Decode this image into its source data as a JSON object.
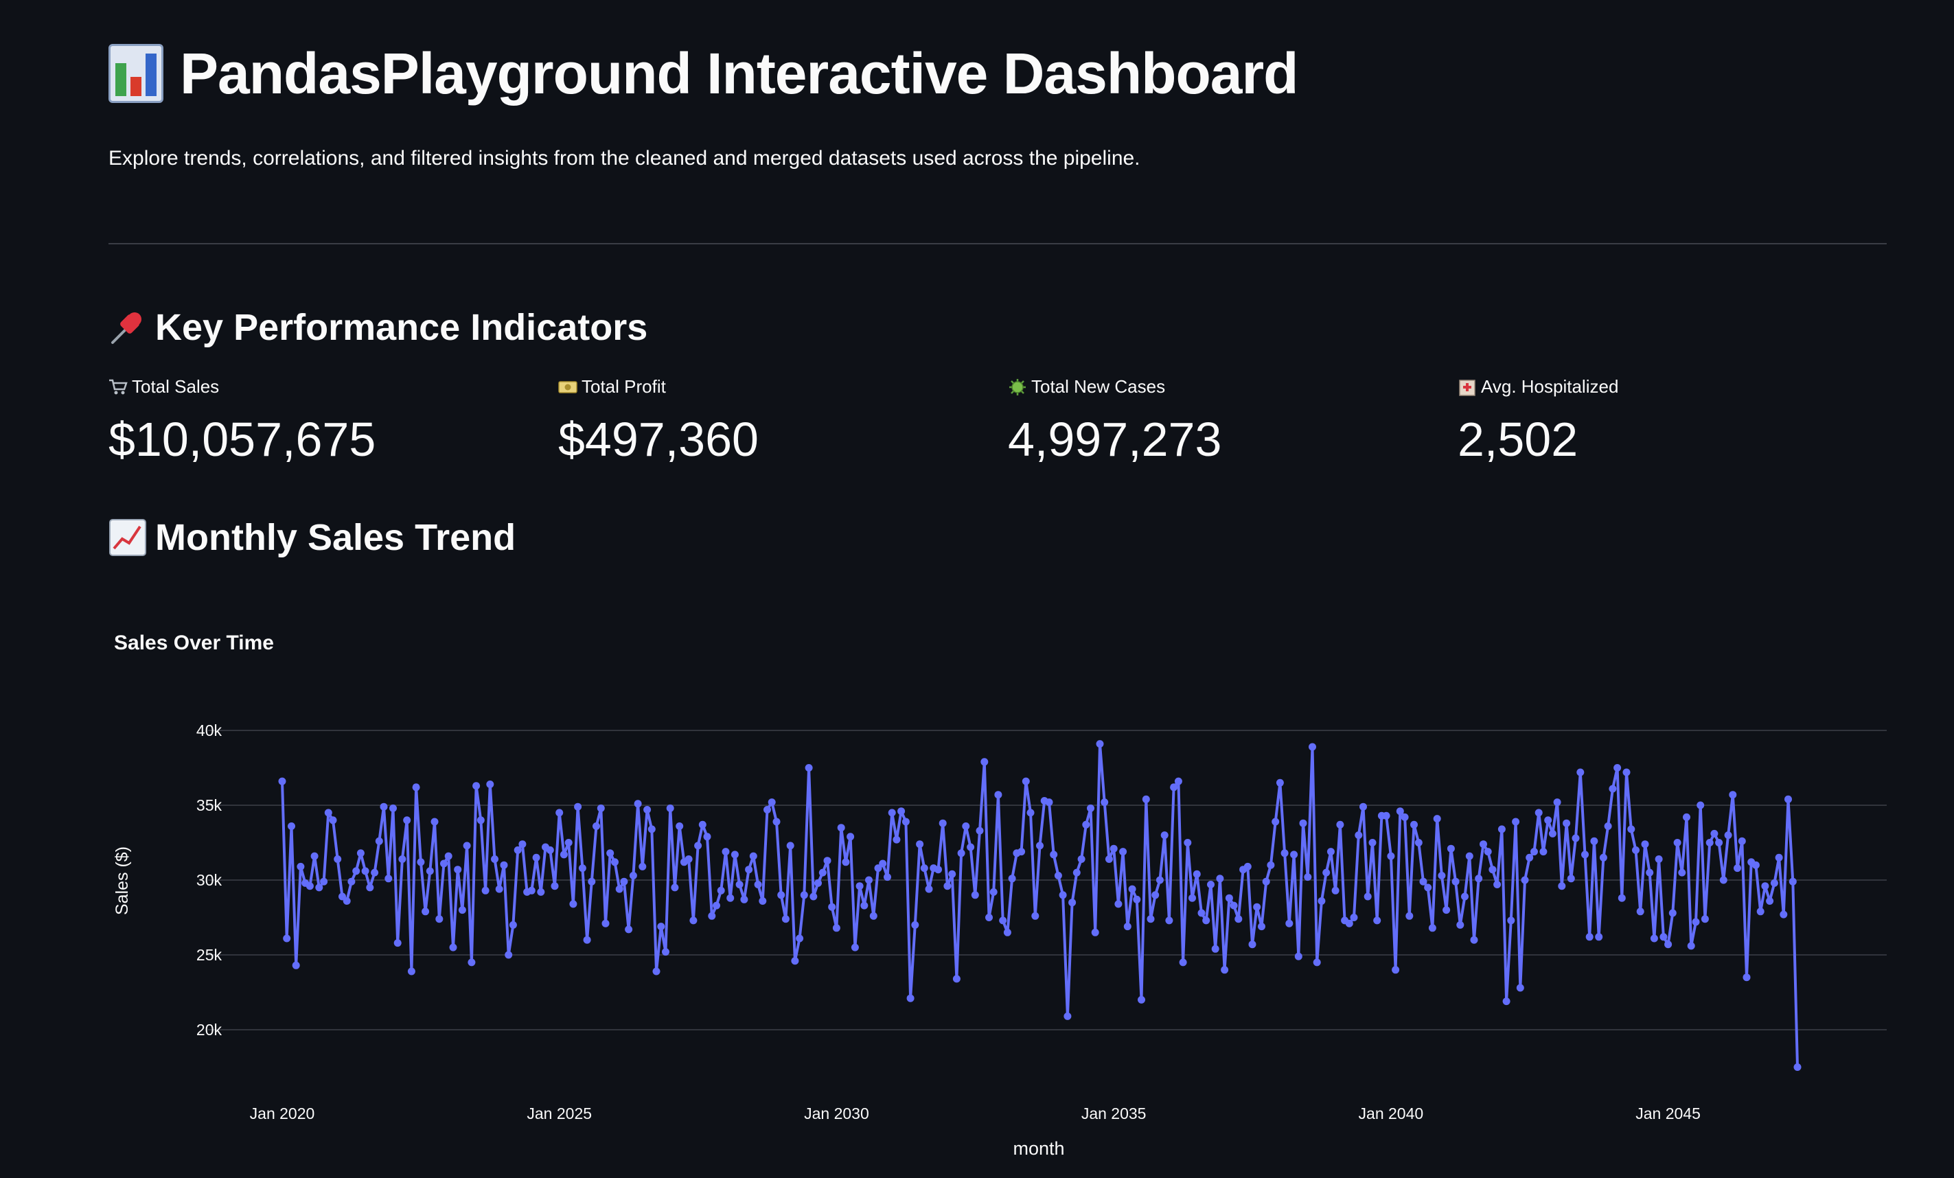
{
  "header": {
    "title": "PandasPlayground Interactive Dashboard",
    "subtitle": "Explore trends, correlations, and filtered insights from the cleaned and merged datasets used across the pipeline.",
    "title_icon": "bar-chart-icon"
  },
  "kpi_section": {
    "title": "Key Performance Indicators",
    "icon": "pushpin-icon",
    "items": [
      {
        "label": "Total Sales",
        "value": "$10,057,675",
        "icon": "shopping-cart-icon"
      },
      {
        "label": "Total Profit",
        "value": "$497,360",
        "icon": "money-icon"
      },
      {
        "label": "Total New Cases",
        "value": "4,997,273",
        "icon": "virus-icon"
      },
      {
        "label": "Avg. Hospitalized",
        "value": "2,502",
        "icon": "hospital-icon"
      }
    ]
  },
  "trend_section": {
    "title": "Monthly Sales Trend",
    "icon": "chart-increasing-icon"
  },
  "colors": {
    "background": "#0e1117",
    "line": "#636efa",
    "grid": "#31343c",
    "text": "#fafafa"
  },
  "chart_data": {
    "type": "line",
    "title": "Sales Over Time",
    "xlabel": "month",
    "ylabel": "Sales ($)",
    "x_start": "2020-01",
    "x_ticks": [
      "Jan 2020",
      "Jan 2025",
      "Jan 2030",
      "Jan 2035",
      "Jan 2040",
      "Jan 2045"
    ],
    "y_ticks": [
      "20k",
      "25k",
      "30k",
      "35k",
      "40k"
    ],
    "ylim": [
      16000,
      41000
    ],
    "grid": true,
    "markers": true,
    "series": [
      {
        "values": [
          36600,
          26100,
          33600,
          24300,
          30900,
          29800,
          29600,
          31600,
          29500,
          29900,
          34500,
          34000,
          31400,
          28900,
          28600,
          29900,
          30600,
          31800,
          30600,
          29500,
          30500,
          32600,
          34900,
          30100,
          34800,
          25800,
          31400,
          34000,
          23900,
          36200,
          31200,
          27900,
          30600,
          33900,
          27400,
          31100,
          31600,
          25500,
          30700,
          28000,
          32300,
          24500,
          36300,
          34000,
          29300,
          36400,
          31400,
          29400,
          31000,
          25000,
          27000,
          32000,
          32400,
          29200,
          29300,
          31500,
          29200,
          32200,
          32000,
          29600,
          34500,
          31700,
          32500,
          28400,
          34900,
          30800,
          26000,
          29900,
          33600,
          34800,
          27100,
          31800,
          31200,
          29400,
          29900,
          26700,
          30300,
          35100,
          30900,
          34700,
          33400,
          23900,
          26900,
          25200,
          34800,
          29500,
          33600,
          31200,
          31400,
          27300,
          32300,
          33700,
          32900,
          27600,
          28300,
          29300,
          31900,
          28800,
          31700,
          29700,
          28700,
          30700,
          31600,
          29700,
          28600,
          34700,
          35200,
          33900,
          29000,
          27400,
          32300,
          24600,
          26100,
          29000,
          37500,
          28900,
          29800,
          30500,
          31300,
          28200,
          26800,
          33500,
          31200,
          32900,
          25500,
          29600,
          28300,
          30000,
          27600,
          30800,
          31100,
          30200,
          34500,
          32700,
          34600,
          33900,
          22100,
          27000,
          32400,
          30800,
          29400,
          30800,
          30700,
          33800,
          29600,
          30400,
          23400,
          31800,
          33600,
          32200,
          29000,
          33300,
          37900,
          27500,
          29200,
          35700,
          27300,
          26500,
          30100,
          31800,
          31900,
          36600,
          34500,
          27600,
          32300,
          35300,
          35200,
          31700,
          30300,
          29000,
          20900,
          28500,
          30500,
          31400,
          33700,
          34800,
          26500,
          39100,
          35200,
          31400,
          32100,
          28400,
          31900,
          26900,
          29400,
          28700,
          22000,
          35400,
          27400,
          29000,
          30000,
          33000,
          27300,
          36200,
          36600,
          24500,
          32500,
          28800,
          30400,
          27800,
          27300,
          29700,
          25400,
          30100,
          24000,
          28800,
          28300,
          27400,
          30700,
          30900,
          25700,
          28200,
          26900,
          29900,
          31000,
          33900,
          36500,
          31800,
          27100,
          31700,
          24900,
          33800,
          30200,
          38900,
          24500,
          28600,
          30500,
          31900,
          29300,
          33700,
          27300,
          27100,
          27500,
          33000,
          34900,
          28900,
          32500,
          27300,
          34300,
          34300,
          31600,
          24000,
          34600,
          34200,
          27600,
          33700,
          32500,
          29900,
          29500,
          26800,
          34100,
          30300,
          28000,
          32100,
          29900,
          27000,
          28900,
          31600,
          26000,
          30100,
          32400,
          31900,
          30700,
          29700,
          33400,
          21900,
          27300,
          33900,
          22800,
          30000,
          31500,
          31900,
          34500,
          31900,
          34000,
          33100,
          35200,
          29600,
          33800,
          30100,
          32800,
          37200,
          31700,
          26200,
          32600,
          26200,
          31500,
          33600,
          36100,
          37500,
          28800,
          37200,
          33400,
          32000,
          27900,
          32400,
          30500,
          26100,
          31400,
          26200,
          25700,
          27800,
          32500,
          30500,
          34200,
          25600,
          27200,
          35000,
          27400,
          32500,
          33100,
          32500,
          30000,
          33000,
          35700,
          30800,
          32600,
          23500,
          31200,
          31000,
          27900,
          29600,
          28600,
          29800,
          31500,
          27700,
          35400,
          29900,
          17500
        ]
      }
    ]
  }
}
